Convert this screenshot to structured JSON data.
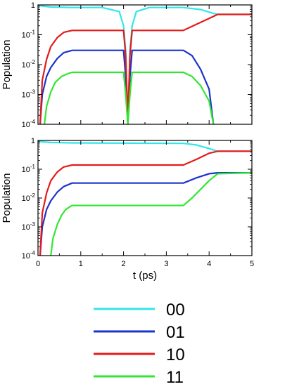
{
  "chart_data": [
    {
      "type": "line",
      "ylabel": "Population",
      "xlabel": "",
      "yscale": "log",
      "ylim": [
        0.0001,
        1
      ],
      "xlim": [
        0,
        5
      ],
      "ytick_labels": [
        {
          "value": 1,
          "base": "1",
          "exp": ""
        },
        {
          "value": 0.1,
          "base": "10",
          "exp": "-1"
        },
        {
          "value": 0.01,
          "base": "10",
          "exp": "-2"
        },
        {
          "value": 0.001,
          "base": "10",
          "exp": "-3"
        },
        {
          "value": 0.0001,
          "base": "10",
          "exp": "-4"
        }
      ],
      "xtick_labels": [],
      "series": [
        {
          "key": "00",
          "color": "#33e6e6",
          "x": [
            0,
            0.3,
            0.8,
            1.5,
            1.9,
            2.0,
            2.05,
            2.1,
            2.15,
            2.2,
            2.3,
            2.6,
            3.4,
            3.8,
            4.1,
            4.2,
            5
          ],
          "y": [
            0.95,
            0.85,
            0.82,
            0.82,
            0.6,
            0.2,
            0.03,
            0.0001,
            0.03,
            0.2,
            0.6,
            0.82,
            0.82,
            0.7,
            0.52,
            0.48,
            0.48
          ]
        },
        {
          "key": "01",
          "color": "#1a33cc",
          "x": [
            0.05,
            0.1,
            0.2,
            0.3,
            0.45,
            0.6,
            0.8,
            2.0,
            2.05,
            2.1,
            2.15,
            2.2,
            3.4,
            3.6,
            3.8,
            4.0,
            4.1
          ],
          "y": [
            0.0001,
            0.001,
            0.004,
            0.008,
            0.016,
            0.025,
            0.03,
            0.03,
            0.004,
            0.0001,
            0.004,
            0.03,
            0.03,
            0.02,
            0.007,
            0.0015,
            0.0001
          ]
        },
        {
          "key": "10",
          "color": "#e61a1a",
          "x": [
            0.05,
            0.1,
            0.2,
            0.3,
            0.45,
            0.6,
            0.8,
            2.0,
            2.05,
            2.08,
            2.1,
            2.12,
            2.15,
            2.2,
            3.4,
            4.2,
            5
          ],
          "y": [
            0.0001,
            0.003,
            0.015,
            0.04,
            0.08,
            0.12,
            0.14,
            0.14,
            0.02,
            0.001,
            0.0001,
            0.001,
            0.02,
            0.14,
            0.14,
            0.48,
            0.48
          ]
        },
        {
          "key": "11",
          "color": "#33e633",
          "x": [
            0.15,
            0.2,
            0.3,
            0.4,
            0.55,
            0.7,
            0.8,
            2.0,
            2.05,
            2.1,
            2.15,
            2.2,
            3.4,
            3.6,
            3.8,
            4.0,
            4.1
          ],
          "y": [
            0.0001,
            0.0004,
            0.0012,
            0.0025,
            0.004,
            0.005,
            0.0055,
            0.0055,
            0.001,
            0.0001,
            0.001,
            0.0055,
            0.0055,
            0.004,
            0.002,
            0.0006,
            0.0001
          ]
        }
      ]
    },
    {
      "type": "line",
      "ylabel": "Population",
      "xlabel": "t (ps)",
      "yscale": "log",
      "ylim": [
        0.0001,
        1
      ],
      "xlim": [
        0,
        5
      ],
      "ytick_labels": [
        {
          "value": 1,
          "base": "1",
          "exp": ""
        },
        {
          "value": 0.1,
          "base": "10",
          "exp": "-1"
        },
        {
          "value": 0.01,
          "base": "10",
          "exp": "-2"
        },
        {
          "value": 0.001,
          "base": "10",
          "exp": "-3"
        },
        {
          "value": 0.0001,
          "base": "10",
          "exp": "-4"
        }
      ],
      "xtick_labels": [
        "0",
        "1",
        "2",
        "3",
        "4",
        "5"
      ],
      "series": [
        {
          "key": "00",
          "color": "#33e6e6",
          "x": [
            0,
            0.3,
            0.8,
            3.4,
            3.7,
            4.0,
            4.2,
            5
          ],
          "y": [
            0.92,
            0.85,
            0.82,
            0.79,
            0.7,
            0.52,
            0.42,
            0.42
          ]
        },
        {
          "key": "01",
          "color": "#1a33cc",
          "x": [
            0.05,
            0.1,
            0.2,
            0.3,
            0.45,
            0.6,
            0.8,
            3.4,
            3.7,
            4.0,
            4.2,
            5
          ],
          "y": [
            0.0001,
            0.001,
            0.004,
            0.008,
            0.016,
            0.025,
            0.033,
            0.033,
            0.05,
            0.07,
            0.075,
            0.075
          ]
        },
        {
          "key": "10",
          "color": "#e61a1a",
          "x": [
            0.05,
            0.1,
            0.2,
            0.3,
            0.45,
            0.6,
            0.8,
            3.4,
            3.7,
            4.0,
            4.2,
            5
          ],
          "y": [
            0.0001,
            0.003,
            0.015,
            0.04,
            0.08,
            0.12,
            0.14,
            0.14,
            0.22,
            0.36,
            0.42,
            0.42
          ]
        },
        {
          "key": "11",
          "color": "#33e633",
          "x": [
            0.3,
            0.35,
            0.45,
            0.55,
            0.65,
            0.75,
            0.8,
            3.4,
            3.6,
            3.8,
            4.0,
            4.2,
            5
          ],
          "y": [
            0.0001,
            0.0004,
            0.0012,
            0.0025,
            0.004,
            0.005,
            0.0055,
            0.0055,
            0.01,
            0.02,
            0.04,
            0.07,
            0.075
          ]
        }
      ]
    }
  ],
  "legend": [
    {
      "label": "00",
      "color": "#33e6e6"
    },
    {
      "label": "01",
      "color": "#1a33cc"
    },
    {
      "label": "10",
      "color": "#e61a1a"
    },
    {
      "label": "11",
      "color": "#33e633"
    }
  ]
}
